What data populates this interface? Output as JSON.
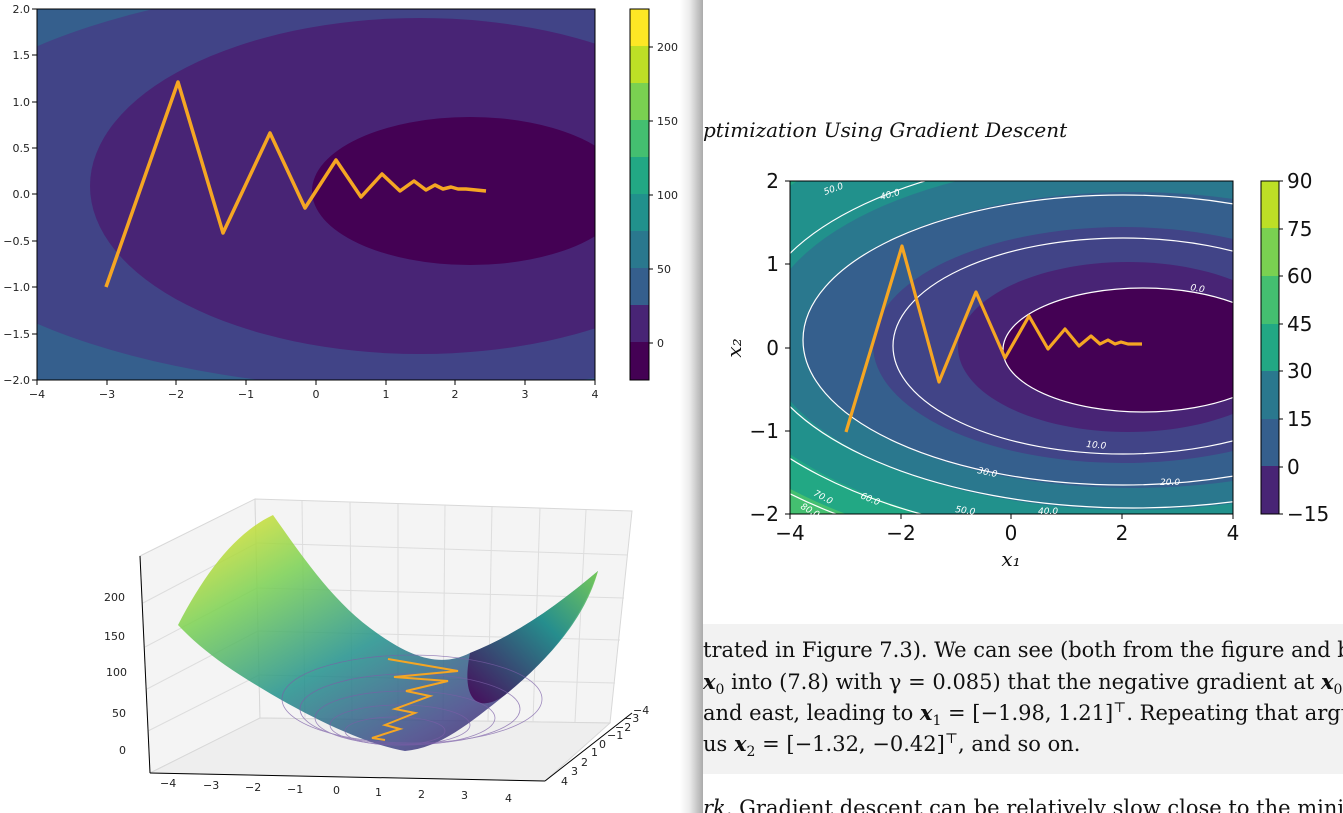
{
  "left_top_plot": {
    "xticks": [
      "−4",
      "−3",
      "−2",
      "−1",
      "0",
      "1",
      "2",
      "3",
      "4"
    ],
    "yticks": [
      "2.0",
      "1.5",
      "1.0",
      "0.5",
      "0.0",
      "−0.5",
      "−1.0",
      "−1.5",
      "−2.0"
    ],
    "colorbar_ticks": [
      "200",
      "150",
      "100",
      "50",
      "0"
    ]
  },
  "left_3d_plot": {
    "z_ticks": [
      "200",
      "150",
      "100",
      "50",
      "0"
    ],
    "x_ticks": [
      "−4",
      "−3",
      "−2",
      "−1",
      "0",
      "1",
      "2",
      "3",
      "4"
    ],
    "y_ticks": [
      "4",
      "3",
      "2",
      "1",
      "0",
      "−1",
      "−2",
      "−3",
      "−4"
    ]
  },
  "right_page": {
    "chapter_title": "ptimization Using Gradient Descent",
    "text_lines": [
      [
        "trated in Figure 7.3). We can see (both from the figure and by"
      ],
      [
        "x₀ into (7.8) with γ = 0.085) that the negative gradient at x₀"
      ],
      [
        " and east, leading to x₁ = [−1.98, 1.21]ᵀ. Repeating that argu"
      ],
      [
        "us x₂ = [−1.32, −0.42]ᵀ, and so on."
      ]
    ],
    "line1": "trated in Figure 7.3). We can see (both from the figure and by",
    "line2a": "x",
    "line2b": "0",
    "line2c": " into (7.8) with γ = 0.085) that the negative gradient at ",
    "line2d": "x",
    "line2e": "0",
    "line3a": " and east, leading to ",
    "line3b": "x",
    "line3c": "1",
    "line3d": " = [−1.98, 1.21]",
    "line3e": "⊤",
    "line3f": ". Repeating that argu",
    "line4a": "us ",
    "line4b": "x",
    "line4c": "2",
    "line4d": " = [−1.32, −0.42]",
    "line4e": "⊤",
    "line4f": ", and so on.",
    "remark_a": "rk.",
    "remark_b": "  Gradient descent can be relatively slow close to the mini"
  },
  "right_plot": {
    "xlabel": "x₁",
    "ylabel": "x₂",
    "xticks": [
      "−4",
      "−2",
      "0",
      "2",
      "4"
    ],
    "yticks": [
      "2",
      "1",
      "0",
      "−1",
      "−2"
    ],
    "colorbar_ticks": [
      "90",
      "75",
      "60",
      "45",
      "30",
      "15",
      "0",
      "−15"
    ],
    "contour_labels": [
      "50.0",
      "40.0",
      "0.0",
      "10.0",
      "20.0",
      "30.0",
      "70.0",
      "60.0",
      "80.0",
      "50.0",
      "40.0"
    ]
  },
  "colors": {
    "path": "#f5a623",
    "viridis": [
      "#440154",
      "#482475",
      "#414487",
      "#355f8d",
      "#2a788e",
      "#21918c",
      "#22a884",
      "#44bf70",
      "#7ad151",
      "#bddf26",
      "#fde725"
    ]
  }
}
